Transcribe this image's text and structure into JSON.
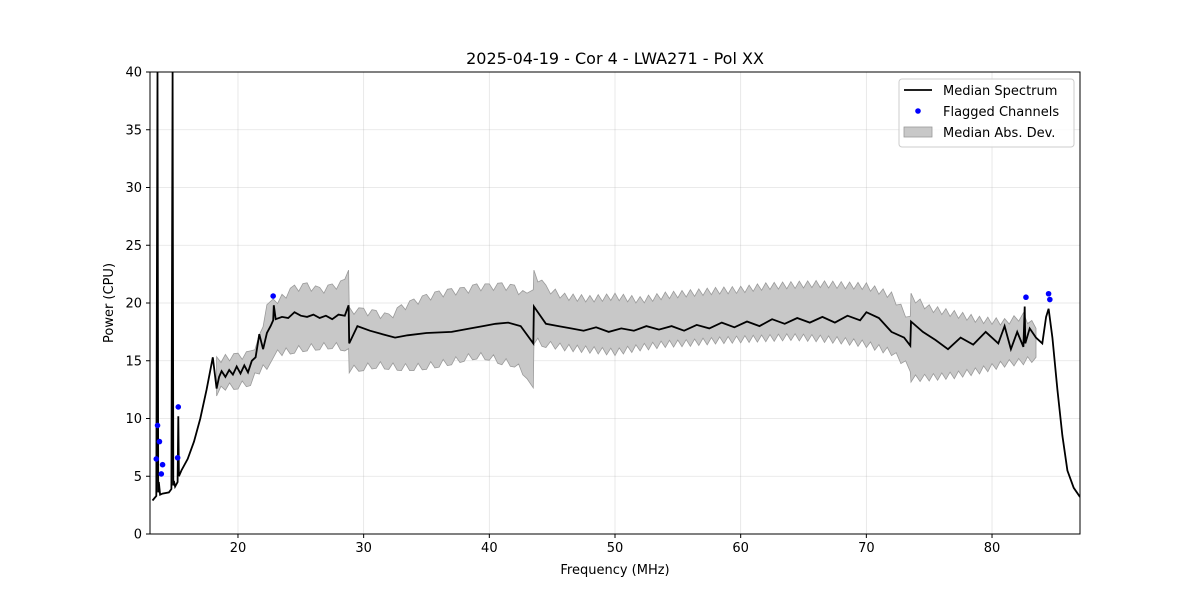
{
  "chart_data": {
    "type": "line",
    "title": "2025-04-19 - Cor 4 - LWA271 - Pol XX",
    "xlabel": "Frequency (MHz)",
    "ylabel": "Power (CPU)",
    "xlim": [
      13,
      87
    ],
    "ylim": [
      0,
      40
    ],
    "xticks": [
      20,
      30,
      40,
      50,
      60,
      70,
      80
    ],
    "yticks": [
      0,
      5,
      10,
      15,
      20,
      25,
      30,
      35,
      40
    ],
    "grid": true,
    "legend_position": "top-right",
    "legend": [
      "Median Spectrum",
      "Flagged Channels",
      "Median Abs. Dev."
    ],
    "colors": {
      "median": "#000000",
      "flagged": "#0000ff",
      "band_fill": "#c8c8c8",
      "band_edge": "#9a9a9a"
    },
    "median_spectrum": {
      "x": [
        13.2,
        13.5,
        13.6,
        13.65,
        13.7,
        13.8,
        14.0,
        14.5,
        14.7,
        14.8,
        14.85,
        14.9,
        15.0,
        15.2,
        15.25,
        15.3,
        15.5,
        16.0,
        16.5,
        17.0,
        17.5,
        18.0,
        18.3,
        18.5,
        18.7,
        19.0,
        19.3,
        19.6,
        19.9,
        20.2,
        20.5,
        20.8,
        21.1,
        21.4,
        21.7,
        22.0,
        22.3,
        22.6,
        22.8,
        22.85,
        23.0,
        23.5,
        24.0,
        24.5,
        25.0,
        25.5,
        26.0,
        26.5,
        27.0,
        27.5,
        28.0,
        28.5,
        28.8,
        28.85,
        29.5,
        30.5,
        31.5,
        32.5,
        33.5,
        35.0,
        37.0,
        38.5,
        39.5,
        40.5,
        41.5,
        42.5,
        43.5,
        43.55,
        44.5,
        45.5,
        46.5,
        47.5,
        48.5,
        49.5,
        50.5,
        51.5,
        52.5,
        53.5,
        54.5,
        55.5,
        56.5,
        57.5,
        58.5,
        59.5,
        60.5,
        61.5,
        62.5,
        63.5,
        64.5,
        65.5,
        66.5,
        67.5,
        68.5,
        69.5,
        70.0,
        71.0,
        72.0,
        73.0,
        73.5,
        73.55,
        74.5,
        75.5,
        76.5,
        77.5,
        78.5,
        79.5,
        80.5,
        81.0,
        81.5,
        82.0,
        82.5,
        82.6,
        82.65,
        83.0,
        83.5,
        84.0,
        84.3,
        84.5,
        84.8,
        85.2,
        85.6,
        86.0,
        86.5,
        87.0
      ],
      "y": [
        2.9,
        3.3,
        40,
        3.6,
        4.5,
        3.4,
        3.5,
        3.6,
        3.9,
        40,
        4.2,
        4.6,
        4.1,
        4.5,
        10.2,
        5.0,
        5.5,
        6.5,
        8.0,
        10.0,
        12.5,
        15.3,
        12.6,
        13.6,
        14.1,
        13.6,
        14.2,
        13.8,
        14.5,
        13.9,
        14.6,
        14.0,
        15.0,
        15.3,
        17.3,
        16.0,
        17.4,
        18.0,
        18.5,
        19.8,
        18.6,
        18.8,
        18.7,
        19.2,
        18.9,
        18.8,
        19.0,
        18.7,
        18.9,
        18.6,
        19.0,
        18.9,
        19.8,
        16.5,
        18.0,
        17.6,
        17.3,
        17.0,
        17.2,
        17.4,
        17.5,
        17.8,
        18.0,
        18.2,
        18.3,
        18.0,
        16.5,
        19.7,
        18.2,
        18.0,
        17.8,
        17.6,
        17.9,
        17.5,
        17.8,
        17.6,
        18.0,
        17.7,
        18.0,
        17.6,
        18.1,
        17.8,
        18.3,
        17.9,
        18.4,
        18.0,
        18.6,
        18.2,
        18.7,
        18.3,
        18.8,
        18.3,
        18.9,
        18.5,
        19.2,
        18.7,
        17.5,
        17.0,
        16.3,
        18.4,
        17.5,
        16.8,
        16.0,
        17.0,
        16.4,
        17.5,
        16.5,
        18.0,
        16.0,
        17.5,
        16.2,
        19.7,
        16.5,
        17.8,
        17.0,
        16.5,
        18.8,
        19.5,
        17.0,
        12.5,
        8.5,
        5.5,
        4.0,
        3.2
      ]
    },
    "mad_band": {
      "x": [
        18.3,
        19.0,
        20.0,
        21.0,
        21.7,
        22.3,
        22.8,
        23.5,
        24.5,
        25.5,
        26.5,
        27.5,
        28.5,
        28.8,
        28.85,
        30.0,
        31.0,
        32.0,
        33.0,
        34.0,
        35.0,
        36.0,
        37.0,
        38.0,
        39.0,
        40.0,
        41.0,
        42.0,
        43.0,
        43.5,
        43.55,
        44.5,
        46.0,
        48.0,
        50.0,
        52.0,
        54.0,
        56.0,
        58.0,
        60.0,
        62.0,
        64.0,
        66.0,
        68.0,
        70.0,
        72.0,
        73.5,
        73.55,
        75.0,
        77.0,
        79.0,
        81.0,
        82.5,
        83.5
      ],
      "lower": [
        12.3,
        12.8,
        12.9,
        13.2,
        14.2,
        14.6,
        15.6,
        15.8,
        16.0,
        16.2,
        16.3,
        16.4,
        16.2,
        16.4,
        14.3,
        14.5,
        14.7,
        14.6,
        14.5,
        14.5,
        14.6,
        14.8,
        15.0,
        15.3,
        15.5,
        15.4,
        15.0,
        14.8,
        13.8,
        13.0,
        16.8,
        16.5,
        16.2,
        16.0,
        15.8,
        16.2,
        16.5,
        16.6,
        16.8,
        16.9,
        17.0,
        17.1,
        17.0,
        16.8,
        16.5,
        15.8,
        14.4,
        13.5,
        13.6,
        13.8,
        14.2,
        14.8,
        15.0,
        15.3
      ],
      "upper": [
        15.0,
        15.2,
        15.3,
        15.5,
        16.9,
        19.5,
        20.0,
        20.4,
        21.2,
        21.4,
        21.0,
        21.3,
        21.7,
        22.5,
        19.3,
        19.2,
        19.0,
        18.7,
        19.5,
        20.0,
        20.4,
        20.7,
        20.9,
        21.0,
        21.3,
        21.3,
        21.4,
        21.2,
        20.5,
        20.8,
        22.5,
        21.2,
        20.5,
        20.3,
        20.5,
        20.2,
        20.6,
        20.8,
        21.0,
        21.1,
        21.4,
        21.5,
        21.6,
        21.5,
        21.4,
        20.6,
        18.5,
        20.5,
        19.5,
        19.0,
        18.5,
        18.3,
        18.8,
        17.8
      ]
    },
    "flagged_channels": {
      "x": [
        13.5,
        13.6,
        13.75,
        13.9,
        14.0,
        15.2,
        15.25,
        22.8,
        82.7,
        84.5,
        84.6
      ],
      "y": [
        6.5,
        9.4,
        8.0,
        5.2,
        6.0,
        6.6,
        11.0,
        20.6,
        20.5,
        20.8,
        20.3
      ]
    }
  }
}
